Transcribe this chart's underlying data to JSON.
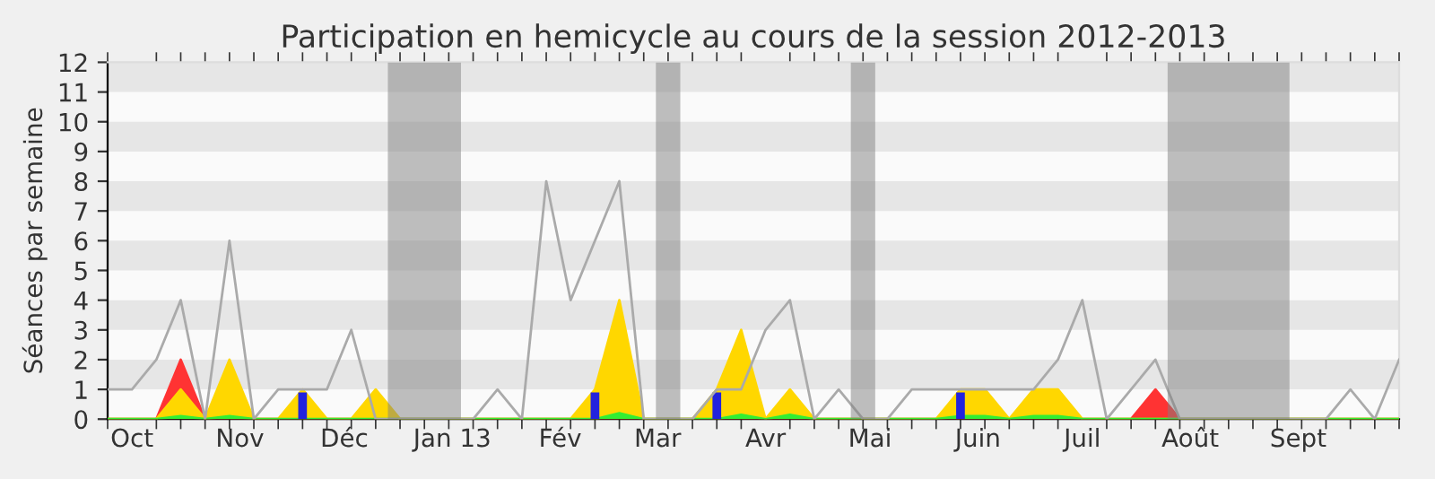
{
  "chart_data": {
    "type": "area",
    "title": "Participation en hemicycle au cours de la session 2012-2013",
    "ylabel": "Séances par semaine",
    "x": [
      "2012-09-24",
      "2012-10-01",
      "2012-10-08",
      "2012-10-15",
      "2012-10-22",
      "2012-10-29",
      "2012-11-05",
      "2012-11-12",
      "2012-11-19",
      "2012-11-26",
      "2012-12-03",
      "2012-12-10",
      "2012-12-17",
      "2012-12-24",
      "2012-12-31",
      "2013-01-07",
      "2013-01-14",
      "2013-01-21",
      "2013-01-28",
      "2013-02-04",
      "2013-02-11",
      "2013-02-18",
      "2013-02-25",
      "2013-03-04",
      "2013-03-11",
      "2013-03-18",
      "2013-03-25",
      "2013-04-01",
      "2013-04-08",
      "2013-04-15",
      "2013-04-22",
      "2013-04-29",
      "2013-05-06",
      "2013-05-13",
      "2013-05-20",
      "2013-05-27",
      "2013-06-03",
      "2013-06-10",
      "2013-06-17",
      "2013-06-24",
      "2013-07-01",
      "2013-07-08",
      "2013-07-15",
      "2013-07-22",
      "2013-07-29",
      "2013-08-05",
      "2013-08-12",
      "2013-08-19",
      "2013-08-26",
      "2013-09-02",
      "2013-09-09",
      "2013-09-16",
      "2013-09-23",
      "2013-09-30"
    ],
    "series": [
      {
        "type": "line",
        "color": "#aaaaaa",
        "values": [
          1,
          1,
          2,
          4,
          0,
          6,
          0,
          1,
          1,
          1,
          3,
          0,
          0,
          0,
          0,
          0,
          1,
          0,
          8,
          4,
          6,
          8,
          0,
          0,
          0,
          1,
          1,
          3,
          4,
          0,
          1,
          0,
          0,
          1,
          1,
          1,
          1,
          1,
          1,
          2,
          4,
          0,
          1,
          2,
          0,
          0,
          0,
          0,
          0,
          0,
          0,
          1,
          0,
          2
        ]
      },
      {
        "color": "#ff3333",
        "values": [
          0,
          0,
          0,
          2,
          0,
          0,
          0,
          0,
          0,
          0,
          0,
          0,
          0,
          0,
          0,
          0,
          0,
          0,
          0,
          0,
          0,
          0,
          0,
          0,
          0,
          0,
          0,
          0,
          0,
          0,
          0,
          0,
          0,
          0,
          0,
          0,
          0,
          0,
          0,
          0,
          0,
          0,
          0,
          1,
          0,
          0,
          0,
          0,
          0,
          0,
          0,
          0,
          0,
          0
        ]
      },
      {
        "color": "#ffd700",
        "values": [
          0,
          0,
          0,
          1,
          0,
          2,
          0,
          0,
          1,
          0,
          0,
          1,
          0,
          0,
          0,
          0,
          0,
          0,
          0,
          0,
          1,
          4,
          0,
          0,
          0,
          1,
          3,
          0,
          1,
          0,
          0,
          0,
          0,
          0,
          0,
          1,
          1,
          0,
          1,
          1,
          0,
          0,
          0,
          0,
          0,
          0,
          0,
          0,
          0,
          0,
          0,
          0,
          0,
          0
        ]
      },
      {
        "color": "#33ee33",
        "values": [
          0,
          0,
          0,
          0.1,
          0,
          0.1,
          0,
          0,
          0,
          0,
          0,
          0,
          0,
          0,
          0,
          0,
          0,
          0,
          0,
          0,
          0,
          0.2,
          0,
          0,
          0,
          0,
          0.15,
          0,
          0.15,
          0,
          0,
          0,
          0,
          0,
          0,
          0.1,
          0.1,
          0,
          0.1,
          0.1,
          0,
          0,
          0,
          0,
          0,
          0,
          0,
          0,
          0,
          0,
          0,
          0,
          0,
          0
        ]
      },
      {
        "type": "bar",
        "color": "#2222dd",
        "values": [
          null,
          null,
          null,
          null,
          null,
          null,
          null,
          null,
          0.9,
          null,
          null,
          null,
          null,
          null,
          null,
          null,
          null,
          null,
          null,
          null,
          0.9,
          null,
          null,
          null,
          null,
          0.9,
          null,
          null,
          null,
          null,
          null,
          null,
          null,
          null,
          null,
          0.9,
          null,
          null,
          null,
          null,
          null,
          null,
          null,
          null,
          null,
          null,
          null,
          null,
          null,
          null,
          null,
          null,
          null,
          null
        ]
      }
    ],
    "xlim": [
      "2012-09-24",
      "2013-09-30"
    ],
    "xticks": [
      {
        "value": "2012-10-01",
        "label": "Oct"
      },
      {
        "value": "2012-11-01",
        "label": "Nov"
      },
      {
        "value": "2012-12-01",
        "label": "Déc"
      },
      {
        "value": "2013-01-01",
        "label": "Jan 13"
      },
      {
        "value": "2013-02-01",
        "label": "Fév"
      },
      {
        "value": "2013-03-01",
        "label": "Mar"
      },
      {
        "value": "2013-04-01",
        "label": "Avr"
      },
      {
        "value": "2013-05-01",
        "label": "Mai"
      },
      {
        "value": "2013-06-01",
        "label": "Juin"
      },
      {
        "value": "2013-07-01",
        "label": "Juil"
      },
      {
        "value": "2013-08-01",
        "label": "Août"
      },
      {
        "value": "2013-09-01",
        "label": "Sept"
      }
    ],
    "ylim": [
      0,
      12
    ],
    "yticks": [
      0,
      1,
      2,
      3,
      4,
      5,
      6,
      7,
      8,
      9,
      10,
      11,
      12
    ],
    "bands": [
      {
        "axis": "y",
        "from": 1,
        "to": 2,
        "color": "#e6e6e6"
      },
      {
        "axis": "y",
        "from": 3,
        "to": 4,
        "color": "#e6e6e6"
      },
      {
        "axis": "y",
        "from": 5,
        "to": 6,
        "color": "#e6e6e6"
      },
      {
        "axis": "y",
        "from": 7,
        "to": 8,
        "color": "#e6e6e6"
      },
      {
        "axis": "y",
        "from": 9,
        "to": 10,
        "color": "#e6e6e6"
      },
      {
        "axis": "y",
        "from": 11,
        "to": 12,
        "color": "#e6e6e6"
      },
      {
        "axis": "x",
        "from": "2012-12-13T12:00",
        "to": "2013-01-03T12:00",
        "color": "#808080"
      },
      {
        "axis": "x",
        "from": "2013-02-28T12:00",
        "to": "2013-03-07T12:00",
        "color": "#808080"
      },
      {
        "axis": "x",
        "from": "2013-04-25T12:00",
        "to": "2013-05-02T12:00",
        "color": "#808080"
      },
      {
        "axis": "x",
        "from": "2013-07-25T12:00",
        "to": "2013-08-29T12:00",
        "color": "#808080"
      }
    ],
    "grid": false,
    "legend": false
  }
}
